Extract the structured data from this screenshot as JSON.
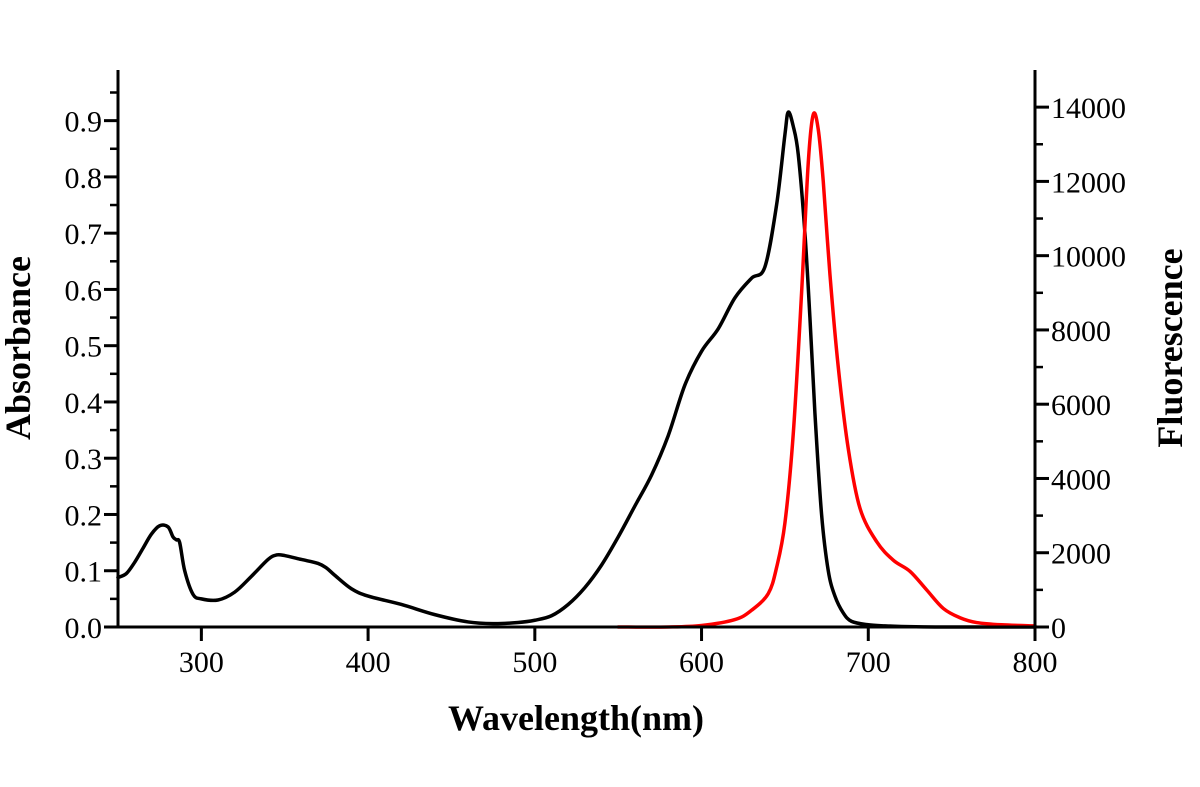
{
  "chart_data": {
    "type": "line",
    "title": "",
    "xlabel": "Wavelength(nm)",
    "ylabel": "Absorbance",
    "y2label": "Fluorescence",
    "xlim": [
      250,
      800
    ],
    "ylim": [
      0,
      0.99
    ],
    "y2lim": [
      0,
      15000
    ],
    "x_ticks": [
      "300",
      "400",
      "500",
      "600",
      "700",
      "800"
    ],
    "y_ticks": [
      "0.0",
      "0.1",
      "0.2",
      "0.3",
      "0.4",
      "0.5",
      "0.6",
      "0.7",
      "0.8",
      "0.9"
    ],
    "y2_ticks": [
      "0",
      "2000",
      "4000",
      "6000",
      "8000",
      "10000",
      "12000",
      "14000"
    ],
    "series": [
      {
        "name": "Absorbance",
        "axis": "left",
        "color": "#000000",
        "points": [
          [
            250,
            0.088
          ],
          [
            255,
            0.095
          ],
          [
            260,
            0.115
          ],
          [
            265,
            0.14
          ],
          [
            270,
            0.165
          ],
          [
            275,
            0.18
          ],
          [
            280,
            0.178
          ],
          [
            283,
            0.16
          ],
          [
            285,
            0.155
          ],
          [
            287,
            0.15
          ],
          [
            290,
            0.1
          ],
          [
            295,
            0.058
          ],
          [
            300,
            0.05
          ],
          [
            310,
            0.048
          ],
          [
            320,
            0.062
          ],
          [
            330,
            0.09
          ],
          [
            340,
            0.12
          ],
          [
            345,
            0.128
          ],
          [
            350,
            0.127
          ],
          [
            360,
            0.12
          ],
          [
            370,
            0.113
          ],
          [
            375,
            0.105
          ],
          [
            380,
            0.092
          ],
          [
            390,
            0.068
          ],
          [
            400,
            0.055
          ],
          [
            420,
            0.04
          ],
          [
            440,
            0.022
          ],
          [
            460,
            0.009
          ],
          [
            475,
            0.006
          ],
          [
            490,
            0.008
          ],
          [
            500,
            0.012
          ],
          [
            510,
            0.02
          ],
          [
            520,
            0.04
          ],
          [
            530,
            0.07
          ],
          [
            540,
            0.11
          ],
          [
            550,
            0.16
          ],
          [
            560,
            0.215
          ],
          [
            570,
            0.27
          ],
          [
            580,
            0.34
          ],
          [
            590,
            0.43
          ],
          [
            600,
            0.49
          ],
          [
            610,
            0.53
          ],
          [
            620,
            0.585
          ],
          [
            630,
            0.62
          ],
          [
            638,
            0.64
          ],
          [
            645,
            0.75
          ],
          [
            650,
            0.875
          ],
          [
            652,
            0.915
          ],
          [
            655,
            0.89
          ],
          [
            658,
            0.84
          ],
          [
            662,
            0.7
          ],
          [
            665,
            0.55
          ],
          [
            668,
            0.38
          ],
          [
            672,
            0.2
          ],
          [
            676,
            0.1
          ],
          [
            680,
            0.055
          ],
          [
            685,
            0.025
          ],
          [
            690,
            0.01
          ],
          [
            700,
            0.004
          ],
          [
            710,
            0.002
          ],
          [
            720,
            0.001
          ],
          [
            740,
            0.0
          ],
          [
            760,
            0.0
          ],
          [
            780,
            0.0
          ],
          [
            800,
            0.0
          ]
        ]
      },
      {
        "name": "Fluorescence",
        "axis": "right",
        "color": "#ff0000",
        "points": [
          [
            550,
            0
          ],
          [
            580,
            0
          ],
          [
            600,
            40
          ],
          [
            620,
            200
          ],
          [
            630,
            450
          ],
          [
            640,
            900
          ],
          [
            645,
            1600
          ],
          [
            650,
            2800
          ],
          [
            655,
            5200
          ],
          [
            660,
            9000
          ],
          [
            664,
            12500
          ],
          [
            667,
            13800
          ],
          [
            670,
            13400
          ],
          [
            673,
            12000
          ],
          [
            677,
            9500
          ],
          [
            682,
            7000
          ],
          [
            688,
            4800
          ],
          [
            695,
            3200
          ],
          [
            705,
            2300
          ],
          [
            715,
            1800
          ],
          [
            725,
            1500
          ],
          [
            735,
            1000
          ],
          [
            745,
            500
          ],
          [
            755,
            250
          ],
          [
            765,
            120
          ],
          [
            780,
            60
          ],
          [
            800,
            30
          ]
        ]
      }
    ]
  }
}
